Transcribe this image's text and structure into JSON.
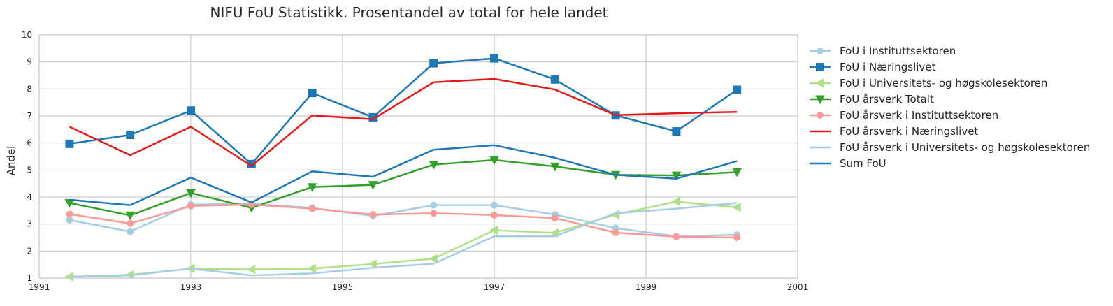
{
  "chart_data": {
    "type": "line",
    "title": "NIFU FoU Statistikk. Prosentandel av total for hele landet",
    "xlabel": "",
    "ylabel": "Andel",
    "xlim": [
      1991,
      2001
    ],
    "ylim": [
      1,
      10
    ],
    "xticks": [
      "1991",
      "1993",
      "1995",
      "1997",
      "1999",
      "2001"
    ],
    "yticks": [
      "1",
      "2",
      "3",
      "4",
      "5",
      "6",
      "7",
      "8",
      "9",
      "10"
    ],
    "grid": true,
    "legend_position": "outside-right",
    "series": [
      {
        "name": "FoU i Instituttsektoren",
        "color": "#a6cee3",
        "marker": "circle",
        "x": [
          1991.4,
          1992.2,
          1993.0,
          1993.8,
          1994.6,
          1995.4,
          1996.2,
          1997.0,
          1997.8,
          1998.6,
          1999.4,
          2000.2
        ],
        "y": [
          3.15,
          2.72,
          3.72,
          3.75,
          3.6,
          3.3,
          3.7,
          3.7,
          3.35,
          2.85,
          2.55,
          2.6
        ]
      },
      {
        "name": "FoU i Næringslivet",
        "color": "#1f78b4",
        "marker": "square",
        "x": [
          1991.4,
          1992.2,
          1993.0,
          1993.8,
          1994.6,
          1995.4,
          1996.2,
          1997.0,
          1997.8,
          1998.6,
          1999.4,
          2000.2
        ],
        "y": [
          5.97,
          6.3,
          7.2,
          5.22,
          7.85,
          6.95,
          8.95,
          9.13,
          8.35,
          7.02,
          6.43,
          7.97
        ]
      },
      {
        "name": "FoU i Universitets- og høgskolesektoren",
        "color": "#b2df8a",
        "marker": "triangle-left",
        "x": [
          1991.4,
          1992.2,
          1993.0,
          1993.8,
          1994.6,
          1995.4,
          1996.2,
          1997.0,
          1997.8,
          1998.6,
          1999.4,
          2000.2
        ],
        "y": [
          1.05,
          1.12,
          1.35,
          1.32,
          1.35,
          1.52,
          1.72,
          2.77,
          2.67,
          3.35,
          3.83,
          3.62
        ]
      },
      {
        "name": "FoU årsverk Totalt",
        "color": "#33a02c",
        "marker": "triangle-down",
        "x": [
          1991.4,
          1992.2,
          1993.0,
          1993.8,
          1994.6,
          1995.4,
          1996.2,
          1997.0,
          1997.8,
          1998.6,
          1999.4,
          2000.2
        ],
        "y": [
          3.78,
          3.32,
          4.15,
          3.6,
          4.37,
          4.45,
          5.2,
          5.37,
          5.13,
          4.82,
          4.8,
          4.92
        ]
      },
      {
        "name": "FoU årsverk i Instituttsektoren",
        "color": "#fb9a99",
        "marker": "circle",
        "x": [
          1991.4,
          1992.2,
          1993.0,
          1993.8,
          1994.6,
          1995.4,
          1996.2,
          1997.0,
          1997.8,
          1998.6,
          1999.4,
          2000.2
        ],
        "y": [
          3.37,
          3.02,
          3.67,
          3.72,
          3.57,
          3.35,
          3.4,
          3.33,
          3.22,
          2.68,
          2.53,
          2.5
        ]
      },
      {
        "name": "FoU årsverk i Næringslivet",
        "color": "#e31a1c",
        "marker": "none",
        "x": [
          1991.4,
          1992.2,
          1993.0,
          1993.8,
          1994.6,
          1995.4,
          1996.2,
          1997.0,
          1997.8,
          1998.6,
          1999.4,
          2000.2
        ],
        "y": [
          6.6,
          5.55,
          6.6,
          5.15,
          7.02,
          6.88,
          8.25,
          8.37,
          7.98,
          7.03,
          7.1,
          7.15
        ]
      },
      {
        "name": "FoU årsverk i Universitets- og høgskolesektoren",
        "color": "#a6cee3",
        "marker": "none",
        "x": [
          1991.4,
          1992.2,
          1993.0,
          1993.8,
          1994.6,
          1995.4,
          1996.2,
          1997.0,
          1997.8,
          1998.6,
          1999.4,
          2000.2
        ],
        "y": [
          1.05,
          1.1,
          1.35,
          1.1,
          1.17,
          1.38,
          1.53,
          2.55,
          2.55,
          3.4,
          3.57,
          3.78
        ]
      },
      {
        "name": "Sum FoU",
        "color": "#1f78b4",
        "marker": "none",
        "x": [
          1991.4,
          1992.2,
          1993.0,
          1993.8,
          1994.6,
          1995.4,
          1996.2,
          1997.0,
          1997.8,
          1998.6,
          1999.4,
          2000.2
        ],
        "y": [
          3.9,
          3.7,
          4.72,
          3.8,
          4.95,
          4.75,
          5.75,
          5.92,
          5.45,
          4.82,
          4.68,
          5.33
        ]
      }
    ]
  }
}
